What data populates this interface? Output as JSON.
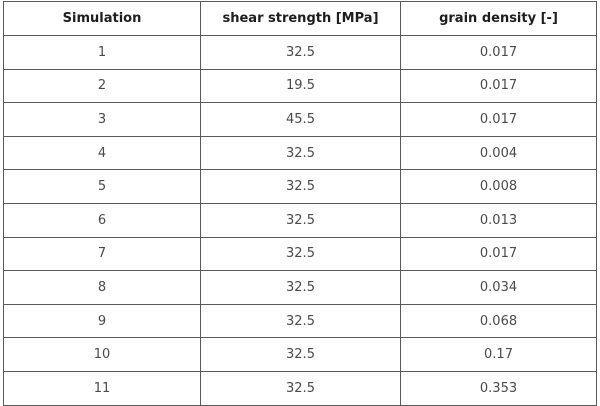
{
  "table": {
    "headers": [
      "Simulation",
      "shear strength [MPa]",
      "grain density [-]"
    ],
    "rows": [
      [
        "1",
        "32.5",
        "0.017"
      ],
      [
        "2",
        "19.5",
        "0.017"
      ],
      [
        "3",
        "45.5",
        "0.017"
      ],
      [
        "4",
        "32.5",
        "0.004"
      ],
      [
        "5",
        "32.5",
        "0.008"
      ],
      [
        "6",
        "32.5",
        "0.013"
      ],
      [
        "7",
        "32.5",
        "0.017"
      ],
      [
        "8",
        "32.5",
        "0.034"
      ],
      [
        "9",
        "32.5",
        "0.068"
      ],
      [
        "10",
        "32.5",
        "0.17"
      ],
      [
        "11",
        "32.5",
        "0.353"
      ]
    ]
  }
}
